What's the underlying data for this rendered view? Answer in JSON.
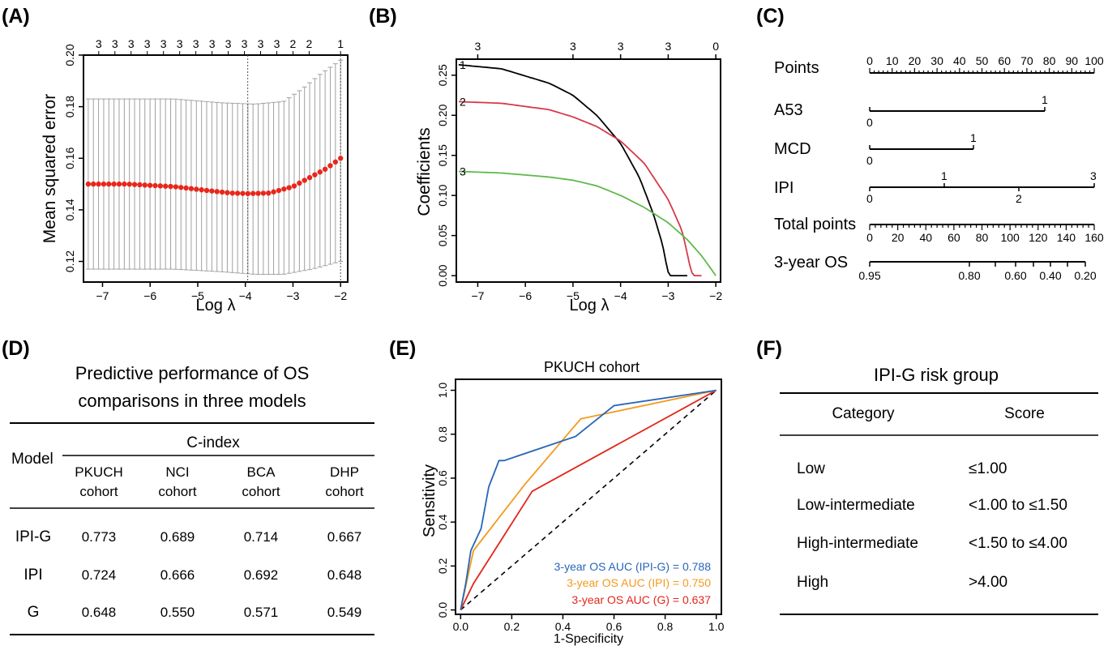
{
  "panels": {
    "a": "(A)",
    "b": "(B)",
    "c": "(C)",
    "d": "(D)",
    "e": "(E)",
    "f": "(F)"
  },
  "chart_data": [
    {
      "id": "A",
      "type": "scatter",
      "xlabel": "Log λ",
      "ylabel": "Mean squared error",
      "xlim": [
        -7.4,
        -1.85
      ],
      "ylim": [
        0.112,
        0.2
      ],
      "xticks": [
        -7,
        -6,
        -5,
        -4,
        -3,
        -2
      ],
      "yticks": [
        0.12,
        0.14,
        0.16,
        0.18,
        0.2
      ],
      "ytick_labels": [
        "0.12",
        "0.14",
        "0.16",
        "0.18",
        "0.20"
      ],
      "top_counts": [
        "3",
        "3",
        "3",
        "3",
        "3",
        "3",
        "3",
        "3",
        "3",
        "3",
        "3",
        "3",
        "2",
        "2",
        "1"
      ],
      "top_count_x": [
        -7.08,
        -6.74,
        -6.4,
        -6.06,
        -5.72,
        -5.38,
        -5.04,
        -4.7,
        -4.36,
        -4.02,
        -3.68,
        -3.34,
        -3.0,
        -2.66,
        -2.0
      ],
      "vlines": [
        -3.95,
        -2.0
      ],
      "x_start": -7.3,
      "x_end": -2.0,
      "n_points": 50,
      "mse_curve": [
        [
          -7.3,
          0.15
        ],
        [
          -6.5,
          0.15
        ],
        [
          -5.5,
          0.149
        ],
        [
          -4.8,
          0.1475
        ],
        [
          -4.3,
          0.1465
        ],
        [
          -3.95,
          0.1463
        ],
        [
          -3.5,
          0.1465
        ],
        [
          -3.0,
          0.149
        ],
        [
          -2.6,
          0.153
        ],
        [
          -2.3,
          0.156
        ],
        [
          -2.0,
          0.16
        ]
      ],
      "upper_curve": [
        [
          -7.3,
          0.183
        ],
        [
          -5.5,
          0.183
        ],
        [
          -4.5,
          0.1815
        ],
        [
          -3.8,
          0.181
        ],
        [
          -3.2,
          0.182
        ],
        [
          -2.8,
          0.187
        ],
        [
          -2.4,
          0.193
        ],
        [
          -2.0,
          0.198
        ]
      ],
      "lower_curve": [
        [
          -7.3,
          0.117
        ],
        [
          -5.5,
          0.117
        ],
        [
          -4.5,
          0.116
        ],
        [
          -3.8,
          0.115
        ],
        [
          -3.2,
          0.115
        ],
        [
          -2.6,
          0.117
        ],
        [
          -2.0,
          0.12
        ]
      ],
      "point_color": "#e8271b",
      "bar_color": "#a0a0a0"
    },
    {
      "id": "B",
      "type": "line",
      "xlabel": "Log λ",
      "ylabel": "Coefficients",
      "xlim": [
        -7.45,
        -1.9
      ],
      "ylim": [
        -0.008,
        0.27
      ],
      "xticks": [
        -7,
        -6,
        -5,
        -4,
        -3,
        -2
      ],
      "yticks": [
        0,
        0.05,
        0.1,
        0.15,
        0.2,
        0.25
      ],
      "ytick_labels": [
        "0.00",
        "0.05",
        "0.10",
        "0.15",
        "0.20",
        "0.25"
      ],
      "top_ticks": [
        -7.0,
        -5.0,
        -4.0,
        -3.0,
        -2.0
      ],
      "top_labels": [
        "3",
        "3",
        "3",
        "3",
        "0"
      ],
      "series": [
        {
          "name": "1",
          "color": "#000000",
          "values": [
            [
              -7.4,
              0.263
            ],
            [
              -6.5,
              0.258
            ],
            [
              -5.5,
              0.24
            ],
            [
              -5.0,
              0.225
            ],
            [
              -4.5,
              0.2
            ],
            [
              -4.0,
              0.165
            ],
            [
              -3.6,
              0.122
            ],
            [
              -3.3,
              0.075
            ],
            [
              -3.1,
              0.035
            ],
            [
              -3.0,
              0.0
            ],
            [
              -2.6,
              0.0
            ]
          ]
        },
        {
          "name": "2",
          "color": "#d63a4a",
          "values": [
            [
              -7.4,
              0.217
            ],
            [
              -6.5,
              0.215
            ],
            [
              -5.5,
              0.207
            ],
            [
              -5.0,
              0.198
            ],
            [
              -4.5,
              0.186
            ],
            [
              -4.0,
              0.168
            ],
            [
              -3.5,
              0.14
            ],
            [
              -3.0,
              0.095
            ],
            [
              -2.7,
              0.055
            ],
            [
              -2.5,
              0.0
            ],
            [
              -2.3,
              0.0
            ]
          ]
        },
        {
          "name": "3",
          "color": "#5fb94a",
          "values": [
            [
              -7.4,
              0.13
            ],
            [
              -6.5,
              0.128
            ],
            [
              -5.5,
              0.123
            ],
            [
              -5.0,
              0.119
            ],
            [
              -4.5,
              0.112
            ],
            [
              -4.0,
              0.1
            ],
            [
              -3.5,
              0.085
            ],
            [
              -3.0,
              0.066
            ],
            [
              -2.6,
              0.045
            ],
            [
              -2.3,
              0.025
            ],
            [
              -2.0,
              0.0
            ]
          ]
        }
      ]
    },
    {
      "id": "C",
      "type": "table",
      "rows": [
        {
          "label": "Points",
          "ticks": [
            "0",
            "10",
            "20",
            "30",
            "40",
            "50",
            "60",
            "70",
            "80",
            "90",
            "100"
          ]
        },
        {
          "label": "A53",
          "values": [
            "0",
            "1"
          ]
        },
        {
          "label": "MCD",
          "values": [
            "0",
            "1"
          ]
        },
        {
          "label": "IPI",
          "values_top": [
            "1",
            "3"
          ],
          "values_bottom": [
            "0",
            "2"
          ]
        },
        {
          "label": "Total points",
          "ticks": [
            "0",
            "20",
            "40",
            "60",
            "80",
            "100",
            "120",
            "140",
            "160"
          ]
        },
        {
          "label": "3-year OS",
          "ticks": [
            "0.95",
            "0.80",
            "0.60",
            "0.40",
            "0.20"
          ]
        }
      ]
    },
    {
      "id": "D",
      "type": "table",
      "title_line1": "Predictive performance of OS",
      "title_line2": "comparisons in three models",
      "group_header": "C-index",
      "row_header": "Model",
      "columns": [
        [
          "PKUCH",
          "cohort"
        ],
        [
          "NCI",
          "cohort"
        ],
        [
          "BCA",
          "cohort"
        ],
        [
          "DHP",
          "cohort"
        ]
      ],
      "rows": [
        {
          "model": "IPI-G",
          "values": [
            "0.773",
            "0.689",
            "0.714",
            "0.667"
          ]
        },
        {
          "model": "IPI",
          "values": [
            "0.724",
            "0.666",
            "0.692",
            "0.648"
          ]
        },
        {
          "model": "G",
          "values": [
            "0.648",
            "0.550",
            "0.571",
            "0.549"
          ]
        }
      ]
    },
    {
      "id": "E",
      "type": "line",
      "title": "PKUCH cohort",
      "xlabel": "1-Specificity",
      "ylabel": "Sensitivity",
      "xlim": [
        -0.02,
        1.02
      ],
      "ylim": [
        -0.02,
        1.05
      ],
      "xticks": [
        0,
        0.2,
        0.4,
        0.6,
        0.8,
        1.0
      ],
      "xtick_labels": [
        "0.0",
        "0.2",
        "0.4",
        "0.6",
        "0.8",
        "1.0"
      ],
      "yticks": [
        0,
        0.2,
        0.4,
        0.6,
        0.8,
        1.0
      ],
      "ytick_labels": [
        "0.0",
        "0.2",
        "0.4",
        "0.6",
        "0.8",
        "1.0"
      ],
      "series": [
        {
          "name": "3-year OS AUC (IPI-G) = 0.788",
          "color": "#2766b8",
          "values": [
            [
              0,
              0
            ],
            [
              0.02,
              0.12
            ],
            [
              0.04,
              0.27
            ],
            [
              0.08,
              0.37
            ],
            [
              0.11,
              0.56
            ],
            [
              0.15,
              0.68
            ],
            [
              0.17,
              0.68
            ],
            [
              0.45,
              0.79
            ],
            [
              0.6,
              0.93
            ],
            [
              1,
              1
            ]
          ]
        },
        {
          "name": "3-year OS AUC (IPI) = 0.750",
          "color": "#f39a1e",
          "values": [
            [
              0,
              0
            ],
            [
              0.05,
              0.27
            ],
            [
              0.25,
              0.57
            ],
            [
              0.47,
              0.87
            ],
            [
              1,
              1
            ]
          ]
        },
        {
          "name": "3-year OS AUC (G) = 0.637",
          "color": "#e3261b",
          "values": [
            [
              0,
              0
            ],
            [
              0.05,
              0.12
            ],
            [
              0.28,
              0.54
            ],
            [
              1,
              1
            ]
          ]
        }
      ],
      "reference": [
        [
          0,
          0
        ],
        [
          1,
          1
        ]
      ]
    },
    {
      "id": "F",
      "type": "table",
      "title": "IPI-G risk group",
      "columns": [
        "Category",
        "Score"
      ],
      "rows": [
        {
          "category": "Low",
          "score": "≤1.00"
        },
        {
          "category": "Low-intermediate",
          "score": "<1.00 to ≤1.50"
        },
        {
          "category": "High-intermediate",
          "score": "<1.50 to ≤4.00"
        },
        {
          "category": "High",
          "score": ">4.00"
        }
      ]
    }
  ]
}
